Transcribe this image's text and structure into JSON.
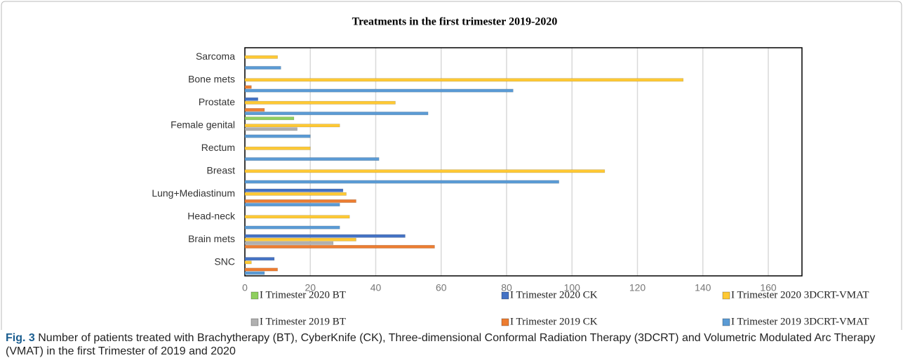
{
  "chart_data": {
    "type": "barh",
    "title": "Treatments  in the first trimester 2019-2020",
    "categories": [
      "Sarcoma",
      "Bone mets",
      "Prostate",
      "Female genital",
      "Rectum",
      "Breast",
      "Lung+Mediastinum",
      "Head-neck",
      "Brain mets",
      "SNC"
    ],
    "series": [
      {
        "name": "I Trimester 2020 BT",
        "color": "#8fcf5f",
        "values": [
          null,
          null,
          null,
          15,
          null,
          null,
          null,
          null,
          null,
          null
        ]
      },
      {
        "name": "I Trimester 2020 CK",
        "color": "#4472c4",
        "values": [
          null,
          null,
          4,
          null,
          null,
          null,
          30,
          null,
          49,
          9
        ]
      },
      {
        "name": "I Trimester 2020 3DCRT-VMAT",
        "color": "#ffc934",
        "values": [
          10,
          134,
          46,
          29,
          20,
          110,
          31,
          32,
          34,
          2
        ]
      },
      {
        "name": "I Trimester 2019 BT",
        "color": "#b0b0b0",
        "values": [
          null,
          null,
          null,
          16,
          null,
          null,
          null,
          null,
          27,
          null
        ]
      },
      {
        "name": "I Trimester 2019 CK",
        "color": "#ed7d31",
        "values": [
          null,
          2,
          6,
          null,
          null,
          null,
          34,
          null,
          58,
          10
        ]
      },
      {
        "name": "I Trimester 2019 3DCRT-VMAT",
        "color": "#5b9bd5",
        "values": [
          11,
          82,
          56,
          20,
          41,
          96,
          29,
          29,
          null,
          6
        ]
      }
    ],
    "xlim": [
      0,
      160
    ],
    "xticks": [
      0,
      20,
      40,
      60,
      80,
      100,
      120,
      140,
      160
    ],
    "grid": true
  },
  "caption": {
    "label": "Fig. 3",
    "text": "Number of patients treated with Brachytherapy (BT), CyberKnife (CK), Three-dimensional Conformal Radiation Therapy (3DCRT) and Volumetric Modulated Arc Therapy (VMAT) in the first Trimester of 2019 and 2020"
  }
}
